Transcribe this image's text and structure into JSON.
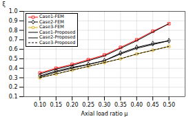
{
  "chart_data": {
    "type": "line",
    "xlabel": "Axial load ratio μ",
    "ylabel": "ξ",
    "x": [
      0.1,
      0.15,
      0.2,
      0.25,
      0.3,
      0.35,
      0.4,
      0.45,
      0.5
    ],
    "series": [
      {
        "name": "Case1-FEM",
        "color": "#ff0000",
        "marker": "square",
        "line_style": "solid",
        "values": [
          0.35,
          0.4,
          0.44,
          0.49,
          0.54,
          0.62,
          0.7,
          0.79,
          0.87
        ]
      },
      {
        "name": "Case2-FEM",
        "color": "#000000",
        "marker": "diamond",
        "line_style": "solid",
        "values": [
          0.32,
          0.37,
          0.41,
          0.44,
          0.48,
          0.56,
          0.62,
          0.66,
          0.69
        ]
      },
      {
        "name": "Case3-FEM",
        "color": "#ddaa00",
        "marker": "circle",
        "line_style": "solid",
        "values": [
          0.3,
          0.34,
          0.38,
          0.42,
          0.46,
          0.5,
          0.55,
          0.59,
          0.63
        ]
      },
      {
        "name": "Case1-Proposed",
        "color": "#000000",
        "line_style": "solid",
        "values": [
          0.34,
          0.39,
          0.43,
          0.48,
          0.53,
          0.61,
          0.69,
          0.78,
          0.87
        ]
      },
      {
        "name": "Case2-Proposed",
        "color": "#000000",
        "line_style": "solid",
        "values": [
          0.31,
          0.36,
          0.4,
          0.44,
          0.48,
          0.55,
          0.61,
          0.65,
          0.69
        ]
      },
      {
        "name": "Case3-Proposed",
        "color": "#000000",
        "line_style": "dashed",
        "values": [
          0.3,
          0.34,
          0.38,
          0.42,
          0.46,
          0.5,
          0.55,
          0.59,
          0.63
        ]
      }
    ],
    "xlim": [
      0.05,
      0.55
    ],
    "ylim": [
      0.1,
      1.0
    ],
    "xticks": [
      {
        "value": 0.1,
        "label": "0.10"
      },
      {
        "value": 0.15,
        "label": "0.15"
      },
      {
        "value": 0.2,
        "label": "0.20"
      },
      {
        "value": 0.25,
        "label": "0.25"
      },
      {
        "value": 0.3,
        "label": "0.30"
      },
      {
        "value": 0.35,
        "label": "0.35"
      },
      {
        "value": 0.4,
        "label": "0.40"
      },
      {
        "value": 0.45,
        "label": "0.45"
      },
      {
        "value": 0.5,
        "label": "0.50"
      }
    ],
    "yticks": [
      0.1,
      0.2,
      0.3,
      0.4,
      0.5,
      0.6,
      0.7,
      0.8,
      0.9,
      {
        "value": 1.0,
        "label": "1.0"
      }
    ],
    "grid": true,
    "legend": "upper left"
  }
}
